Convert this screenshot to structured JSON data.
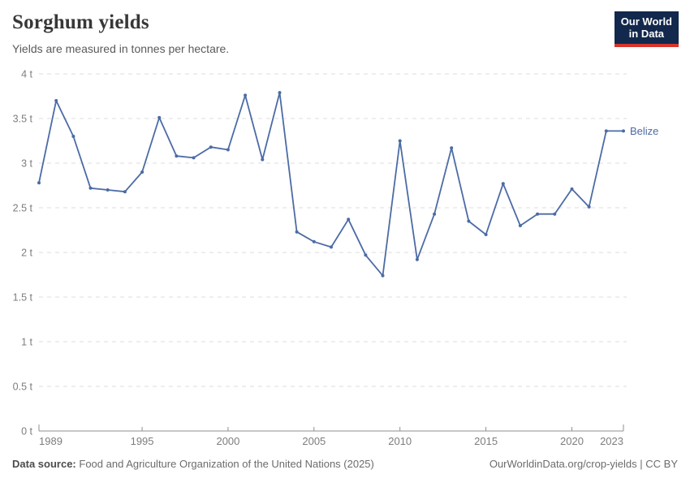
{
  "header": {
    "title": "Sorghum yields",
    "subtitle": "Yields are measured in tonnes per hectare.",
    "logo": {
      "line1": "Our World",
      "line2": "in Data"
    }
  },
  "colors": {
    "line": "#4C6BA5",
    "grid": "#DEDEDE",
    "axis": "#8F8F8F",
    "tick_text": "#7D7D7D",
    "logo_bg": "#12284C",
    "logo_accent": "#D7342C"
  },
  "chart_data": {
    "type": "line",
    "title": "Sorghum yields",
    "subtitle": "Yields are measured in tonnes per hectare.",
    "x": [
      1989,
      1990,
      1991,
      1992,
      1993,
      1994,
      1995,
      1996,
      1997,
      1998,
      1999,
      2000,
      2001,
      2002,
      2003,
      2004,
      2005,
      2006,
      2007,
      2008,
      2009,
      2010,
      2011,
      2012,
      2013,
      2014,
      2015,
      2016,
      2017,
      2018,
      2019,
      2020,
      2021,
      2022,
      2023
    ],
    "series": [
      {
        "name": "Belize",
        "color": "#4C6BA5",
        "values": [
          2.78,
          3.7,
          3.3,
          2.72,
          2.7,
          2.68,
          2.9,
          3.51,
          3.08,
          3.06,
          3.18,
          3.15,
          3.76,
          3.04,
          3.79,
          2.23,
          2.12,
          2.06,
          2.37,
          1.97,
          1.74,
          3.25,
          1.92,
          2.43,
          3.17,
          2.35,
          2.2,
          2.77,
          2.3,
          2.43,
          2.43,
          2.71,
          2.51,
          3.36,
          3.36
        ]
      }
    ],
    "xlim": [
      1989,
      2023
    ],
    "ylim": [
      0,
      4
    ],
    "x_ticks": [
      1989,
      1995,
      2000,
      2005,
      2010,
      2015,
      2020,
      2023
    ],
    "x_tick_labels": [
      "1989",
      "1995",
      "2000",
      "2005",
      "2010",
      "2015",
      "2020",
      "2023"
    ],
    "y_ticks": [
      0,
      0.5,
      1,
      1.5,
      2,
      2.5,
      3,
      3.5,
      4
    ],
    "y_tick_labels": [
      "0 t",
      "0.5 t",
      "1 t",
      "1.5 t",
      "2 t",
      "2.5 t",
      "3 t",
      "3.5 t",
      "4 t"
    ],
    "unit": "tonnes per hectare",
    "grid": "horizontal-dashed",
    "legend_position": "end-of-line-label"
  },
  "footer": {
    "source_label": "Data source:",
    "source_text": "Food and Agriculture Organization of the United Nations (2025)",
    "attribution": "OurWorldinData.org/crop-yields | CC BY"
  }
}
